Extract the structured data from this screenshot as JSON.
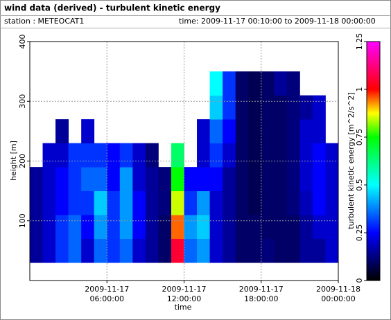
{
  "chart_data": {
    "type": "heatmap",
    "title": "wind data (derived) - turbulent kinetic energy",
    "station_label": "station : METEOCAT1",
    "time_range": "time: 2009-11-17 00:10:00 to 2009-11-18 00:00:00",
    "x_label": "time",
    "y_label": "height [m]",
    "colorbar_label": "turbulent kinetic energy [m^2/s^2]",
    "xlim": [
      0,
      24
    ],
    "xticks": [
      {
        "value": 6,
        "label": "2009-11-17 06:00:00"
      },
      {
        "value": 12,
        "label": "2009-11-17 12:00:00"
      },
      {
        "value": 18,
        "label": "2009-11-17 18:00:00"
      },
      {
        "value": 24,
        "label": "2009-11-18 00:00:00"
      }
    ],
    "ylim": [
      0,
      400
    ],
    "yticks": [
      100,
      200,
      300,
      400
    ],
    "grid": true,
    "clim": [
      0,
      1.25
    ],
    "cticks": [
      0,
      0.25,
      0.5,
      0.75,
      1,
      1.25
    ],
    "colormap": [
      "#000000",
      "#000080",
      "#0000ff",
      "#0080ff",
      "#00ffff",
      "#00ff80",
      "#00ff00",
      "#ffff00",
      "#ff0000",
      "#ff0080",
      "#ff00ff"
    ],
    "x": [
      0.5,
      1.5,
      2.5,
      3.5,
      4.5,
      5.5,
      6.5,
      7.5,
      8.5,
      9.5,
      10.5,
      11.5,
      12.5,
      13.5,
      14.5,
      15.5,
      16.5,
      17.5,
      18.5,
      19.5,
      20.5,
      21.5,
      22.5,
      23.5
    ],
    "y": [
      50,
      90,
      130,
      170,
      210,
      250,
      290,
      330
    ],
    "z": [
      [
        0.15,
        0.2,
        0.3,
        0.35,
        0.2,
        0.35,
        0.3,
        0.35,
        0.2,
        0.15,
        0.1,
        1.05,
        0.35,
        0.4,
        0.2,
        0.15,
        0.1,
        0.1,
        0.12,
        0.1,
        0.1,
        0.15,
        0.15,
        0.2
      ],
      [
        0.15,
        0.2,
        0.3,
        0.35,
        0.25,
        0.4,
        0.3,
        0.4,
        0.25,
        0.15,
        0.1,
        0.95,
        0.4,
        0.45,
        0.2,
        0.15,
        0.1,
        0.1,
        0.1,
        0.1,
        0.1,
        0.15,
        0.2,
        0.2
      ],
      [
        0.15,
        0.2,
        0.25,
        0.3,
        0.3,
        0.45,
        0.3,
        0.4,
        0.25,
        0.15,
        0.12,
        0.85,
        0.3,
        0.4,
        0.2,
        0.15,
        0.1,
        0.08,
        0.1,
        0.1,
        0.12,
        0.18,
        0.25,
        0.2
      ],
      [
        0.15,
        0.2,
        0.25,
        0.3,
        0.35,
        0.35,
        0.25,
        0.4,
        0.2,
        0.15,
        0.12,
        0.75,
        0.25,
        0.25,
        0.25,
        0.15,
        0.1,
        0.08,
        0.1,
        0.1,
        0.12,
        0.2,
        0.25,
        0.2
      ],
      [
        null,
        0.2,
        0.2,
        0.3,
        0.3,
        0.3,
        0.25,
        0.3,
        0.2,
        0.12,
        null,
        0.65,
        null,
        0.2,
        0.3,
        0.2,
        0.1,
        0.08,
        0.1,
        0.1,
        0.12,
        0.2,
        0.25,
        0.2
      ],
      [
        null,
        null,
        0.15,
        null,
        0.2,
        null,
        null,
        null,
        null,
        null,
        null,
        null,
        null,
        0.2,
        0.35,
        0.25,
        0.1,
        0.08,
        0.1,
        0.1,
        0.12,
        0.2,
        0.2,
        null
      ],
      [
        null,
        null,
        null,
        null,
        null,
        null,
        null,
        null,
        null,
        null,
        null,
        null,
        null,
        null,
        0.45,
        0.3,
        0.1,
        0.08,
        0.1,
        0.1,
        0.12,
        0.15,
        0.2,
        null
      ],
      [
        null,
        null,
        null,
        null,
        null,
        null,
        null,
        null,
        null,
        null,
        null,
        null,
        null,
        null,
        0.5,
        0.3,
        0.1,
        0.08,
        0.1,
        0.15,
        0.12,
        null,
        null,
        null
      ]
    ]
  }
}
